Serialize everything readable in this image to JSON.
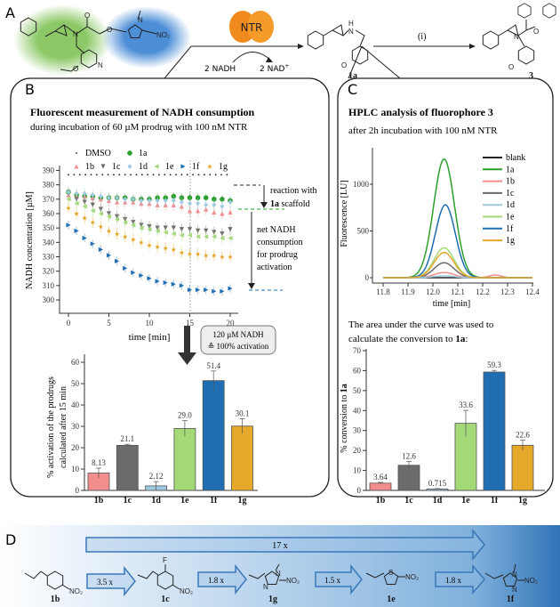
{
  "panels": {
    "a": "A",
    "b": "B",
    "c": "C",
    "d": "D"
  },
  "scheme": {
    "enzyme": "NTR",
    "cofactor_in": "2 NADH",
    "cofactor_out": "2 NAD",
    "cofactor_out_sup": "+",
    "intermediate": "1a",
    "step": "(i)",
    "product": "3",
    "atoms": {
      "N": "N",
      "O": "O",
      "H": "H",
      "NH": "H",
      "NO2": "NO₂",
      "F": "F",
      "S": "S"
    }
  },
  "panel_b": {
    "title": "Fluorescent measurement of NADH consumption",
    "subtitle": "during incubation of 60 µM prodrug with 100 nM NTR",
    "annotation_reaction_1": "reaction with",
    "annotation_reaction_2_bold": "1a",
    "annotation_reaction_2": " scaffold",
    "annotation_net": [
      "net NADH",
      "consumption",
      "for prodrug",
      "activation"
    ],
    "callout_line1": "120 µM NADH",
    "callout_line2": "≙ 100% activation"
  },
  "panel_c": {
    "title": "HPLC analysis of fluorophore 3",
    "subtitle": "after 2h incubation with 100 nM NTR",
    "note_line1": "The area under the curve was used to",
    "note_line2": "calculate the conversion to ",
    "note_bold": "1a",
    "note_end": ":"
  },
  "panel_d": {
    "overall": "17 x",
    "steps": [
      "3.5 x",
      "1.8 x",
      "1.5 x",
      "1.8 x"
    ],
    "compounds": [
      "1b",
      "1c",
      "1g",
      "1e",
      "1f"
    ]
  },
  "colors": {
    "DMSO": "#222222",
    "1a": "#2ca02c",
    "1b": "#f28e8e",
    "1c": "#6b6b6b",
    "1d": "#9ecae1",
    "1e": "#a3d977",
    "1f": "#1f6db3",
    "1g": "#e5a82b",
    "blank": "#222222"
  },
  "chart_data": [
    {
      "type": "scatter",
      "title": "NADH consumption",
      "xlabel": "time [min]",
      "ylabel": "NADH concentration [µM]",
      "xlim": [
        -1,
        21
      ],
      "ylim": [
        295,
        390
      ],
      "xticks": [
        0,
        5,
        10,
        15,
        20
      ],
      "yticks": [
        300,
        310,
        320,
        330,
        340,
        350,
        360,
        370,
        380,
        390
      ],
      "legend_position": "top",
      "x": [
        0,
        1,
        2,
        3,
        4,
        5,
        6,
        7,
        8,
        9,
        10,
        11,
        12,
        13,
        14,
        15,
        16,
        17,
        18,
        19,
        20
      ],
      "series": [
        {
          "name": "DMSO",
          "values": [
            387,
            387,
            387,
            387,
            387,
            387,
            387,
            387,
            387,
            387,
            387,
            387,
            387,
            387,
            387,
            387,
            387,
            387,
            387,
            387,
            387
          ]
        },
        {
          "name": "1a",
          "values": [
            375,
            373,
            372,
            372,
            371,
            371,
            371,
            371,
            370,
            370,
            370,
            371,
            371,
            372,
            371,
            371,
            371,
            371,
            370,
            370,
            369
          ]
        },
        {
          "name": "1b",
          "values": [
            373,
            372,
            372,
            371,
            370,
            369,
            368,
            368,
            368,
            367,
            367,
            366,
            366,
            366,
            365,
            362,
            362,
            363,
            361,
            360,
            361
          ]
        },
        {
          "name": "1c",
          "values": [
            374,
            370,
            368,
            366,
            363,
            360,
            358,
            356,
            354,
            352,
            351,
            350,
            350,
            350,
            349,
            349,
            348,
            348,
            347,
            346,
            349
          ]
        },
        {
          "name": "1d",
          "values": [
            375,
            374,
            374,
            373,
            372,
            371,
            371,
            370,
            370,
            369,
            369,
            369,
            369,
            369,
            368,
            367,
            367,
            366,
            366,
            365,
            368
          ]
        },
        {
          "name": "1e",
          "values": [
            370,
            367,
            365,
            362,
            360,
            358,
            356,
            354,
            352,
            350,
            349,
            348,
            347,
            346,
            345,
            345,
            344,
            344,
            344,
            343,
            343
          ]
        },
        {
          "name": "1f",
          "values": [
            352,
            348,
            343,
            339,
            335,
            331,
            327,
            322,
            319,
            317,
            315,
            313,
            312,
            311,
            310,
            307,
            307,
            307,
            306,
            306,
            308
          ]
        },
        {
          "name": "1g",
          "values": [
            364,
            360,
            357,
            354,
            351,
            348,
            346,
            344,
            342,
            340,
            338,
            337,
            336,
            335,
            333,
            332,
            332,
            331,
            331,
            330,
            330
          ]
        }
      ],
      "reference_time": 15
    },
    {
      "type": "bar",
      "ylabel": [
        "% activation of the prodrugs",
        "calculated after 15 min"
      ],
      "categories": [
        "1b",
        "1c",
        "1d",
        "1e",
        "1f",
        "1g"
      ],
      "values": [
        8.13,
        21.1,
        2.12,
        29.0,
        51.4,
        30.1
      ],
      "value_labels": [
        "8.13",
        "21.1",
        "2.12",
        "29.0",
        "51.4",
        "30.1"
      ],
      "errors": [
        2.3,
        0.5,
        2.0,
        3.7,
        4.5,
        3.5
      ],
      "ylim": [
        0,
        65
      ],
      "yticks": [
        0,
        10,
        20,
        30,
        40,
        50,
        60
      ]
    },
    {
      "type": "line",
      "xlabel": "time [min]",
      "ylabel": "Fluorescence [LU]",
      "xlim": [
        11.75,
        12.4
      ],
      "ylim": [
        -50,
        1400
      ],
      "xticks": [
        11.8,
        11.9,
        12.0,
        12.1,
        12.2,
        12.3,
        12.4
      ],
      "yticks": [
        0,
        500,
        1000
      ],
      "legend_position": "top-right",
      "series": [
        {
          "name": "blank",
          "peak_time": 12.045,
          "peak_height": 0,
          "peak_width": 0.04
        },
        {
          "name": "1a",
          "peak_time": 12.045,
          "peak_height": 1270,
          "peak_width": 0.042
        },
        {
          "name": "1b",
          "peak_time": 12.045,
          "peak_height": 55,
          "peak_width": 0.04
        },
        {
          "name": "1c",
          "peak_time": 12.045,
          "peak_height": 160,
          "peak_width": 0.04
        },
        {
          "name": "1d",
          "peak_time": 12.045,
          "peak_height": 20,
          "peak_width": 0.04
        },
        {
          "name": "1e",
          "peak_time": 12.045,
          "peak_height": 320,
          "peak_width": 0.04
        },
        {
          "name": "1f",
          "peak_time": 12.05,
          "peak_height": 780,
          "peak_width": 0.04
        },
        {
          "name": "1g",
          "peak_time": 12.045,
          "peak_height": 270,
          "peak_width": 0.04
        }
      ]
    },
    {
      "type": "bar",
      "ylabel": "% conversion to ",
      "ylabel_bold": "1a",
      "categories": [
        "1b",
        "1c",
        "1d",
        "1e",
        "1f",
        "1g"
      ],
      "values": [
        3.64,
        12.6,
        0.715,
        33.6,
        59.3,
        22.6
      ],
      "value_labels": [
        "3.64",
        "12.6",
        "0.715",
        "33.6",
        "59.3",
        "22.6"
      ],
      "errors": [
        0.4,
        1.8,
        0.2,
        6.5,
        0.8,
        2.5
      ],
      "ylim": [
        0,
        70
      ],
      "yticks": [
        0,
        10,
        20,
        30,
        40,
        50,
        60,
        70
      ]
    }
  ]
}
